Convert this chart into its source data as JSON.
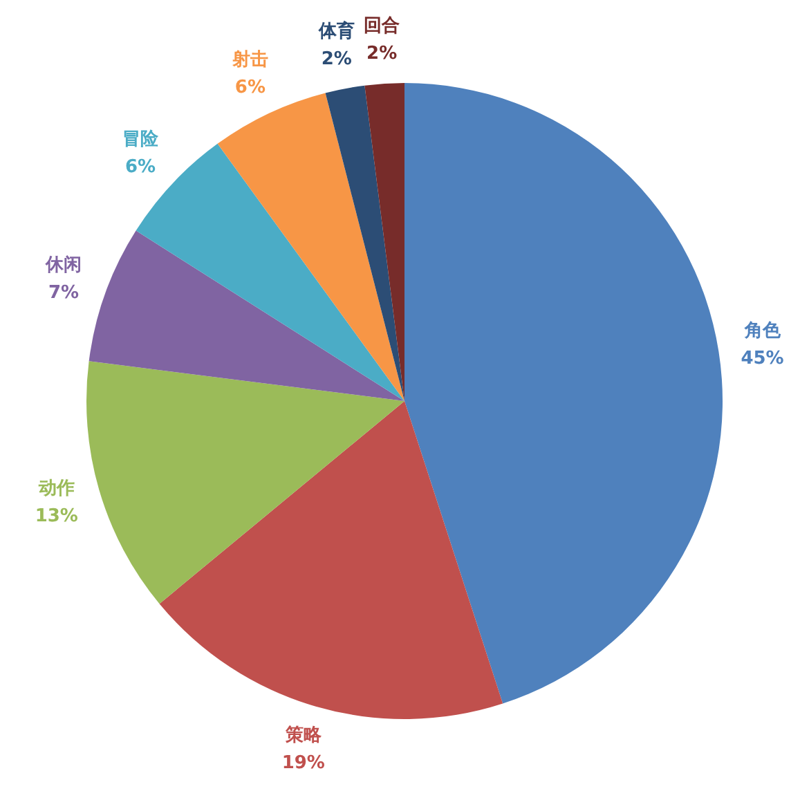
{
  "chart_data": {
    "type": "pie",
    "categories": [
      "角色",
      "策略",
      "动作",
      "休闲",
      "冒险",
      "射击",
      "体育",
      "回合"
    ],
    "values": [
      45,
      19,
      13,
      7,
      6,
      6,
      2,
      2
    ],
    "colors": [
      "#4f81bd",
      "#c0504d",
      "#9bbb59",
      "#8064a2",
      "#4bacc6",
      "#f79646",
      "#2c4d75",
      "#772c2a"
    ],
    "value_labels": [
      "45%",
      "19%",
      "13%",
      "7%",
      "6%",
      "6%",
      "2%",
      "2%"
    ]
  }
}
